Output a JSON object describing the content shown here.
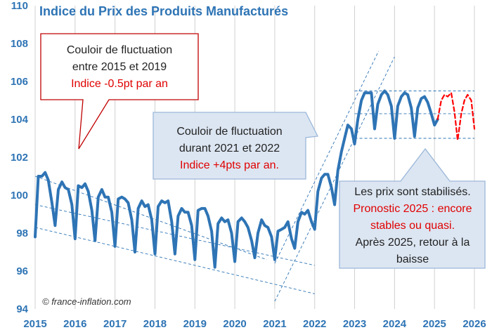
{
  "chart_data": {
    "type": "line",
    "title": "Indice du Prix des Produits Manufacturés",
    "xlabel": "",
    "ylabel": "",
    "xlim": [
      2015,
      2026
    ],
    "ylim": [
      94,
      110
    ],
    "x_ticks": [
      "2015",
      "2016",
      "2017",
      "2018",
      "2019",
      "2020",
      "2021",
      "2022",
      "2023",
      "2024",
      "2025",
      "2026"
    ],
    "y_ticks": [
      "94",
      "96",
      "98",
      "100",
      "102",
      "104",
      "106",
      "108",
      "110"
    ],
    "grid": "vertical lines at each year",
    "series": [
      {
        "style": "solid",
        "color": "#2e74b5",
        "points": [
          [
            2015.0,
            97.8
          ],
          [
            2015.08,
            101.0
          ],
          [
            2015.17,
            101.0
          ],
          [
            2015.25,
            101.2
          ],
          [
            2015.33,
            100.8
          ],
          [
            2015.42,
            99.6
          ],
          [
            2015.5,
            98.4
          ],
          [
            2015.58,
            100.3
          ],
          [
            2015.67,
            100.7
          ],
          [
            2015.75,
            100.4
          ],
          [
            2015.83,
            100.3
          ],
          [
            2015.92,
            99.5
          ],
          [
            2016.0,
            97.7
          ],
          [
            2016.08,
            100.5
          ],
          [
            2016.17,
            100.4
          ],
          [
            2016.25,
            100.6
          ],
          [
            2016.33,
            100.2
          ],
          [
            2016.42,
            99.2
          ],
          [
            2016.5,
            97.6
          ],
          [
            2016.58,
            99.9
          ],
          [
            2016.67,
            100.3
          ],
          [
            2016.75,
            99.9
          ],
          [
            2016.83,
            99.9
          ],
          [
            2016.92,
            99.1
          ],
          [
            2017.0,
            97.3
          ],
          [
            2017.08,
            99.8
          ],
          [
            2017.17,
            99.9
          ],
          [
            2017.25,
            99.8
          ],
          [
            2017.33,
            99.6
          ],
          [
            2017.42,
            98.7
          ],
          [
            2017.5,
            97.0
          ],
          [
            2017.58,
            99.3
          ],
          [
            2017.67,
            99.7
          ],
          [
            2017.75,
            99.4
          ],
          [
            2017.83,
            99.5
          ],
          [
            2017.92,
            98.7
          ],
          [
            2018.0,
            96.9
          ],
          [
            2018.08,
            99.4
          ],
          [
            2018.17,
            99.7
          ],
          [
            2018.25,
            99.6
          ],
          [
            2018.33,
            99.7
          ],
          [
            2018.42,
            98.6
          ],
          [
            2018.5,
            96.9
          ],
          [
            2018.58,
            98.9
          ],
          [
            2018.67,
            99.3
          ],
          [
            2018.75,
            99.1
          ],
          [
            2018.83,
            99.1
          ],
          [
            2018.92,
            98.4
          ],
          [
            2019.0,
            96.6
          ],
          [
            2019.08,
            99.2
          ],
          [
            2019.17,
            99.3
          ],
          [
            2019.25,
            99.3
          ],
          [
            2019.33,
            98.9
          ],
          [
            2019.42,
            98.1
          ],
          [
            2019.5,
            96.2
          ],
          [
            2019.58,
            98.5
          ],
          [
            2019.67,
            98.8
          ],
          [
            2019.75,
            98.6
          ],
          [
            2019.83,
            98.7
          ],
          [
            2019.92,
            98.0
          ],
          [
            2020.0,
            96.5
          ],
          [
            2020.08,
            98.6
          ],
          [
            2020.17,
            98.8
          ],
          [
            2020.25,
            98.6
          ],
          [
            2020.33,
            98.3
          ],
          [
            2020.42,
            97.6
          ],
          [
            2020.5,
            96.7
          ],
          [
            2020.58,
            98.0
          ],
          [
            2020.67,
            98.7
          ],
          [
            2020.75,
            98.4
          ],
          [
            2020.83,
            98.3
          ],
          [
            2020.92,
            97.8
          ],
          [
            2021.0,
            96.6
          ],
          [
            2021.08,
            98.1
          ],
          [
            2021.17,
            98.2
          ],
          [
            2021.25,
            98.3
          ],
          [
            2021.33,
            98.6
          ],
          [
            2021.42,
            97.7
          ],
          [
            2021.5,
            97.2
          ],
          [
            2021.58,
            98.6
          ],
          [
            2021.67,
            99.1
          ],
          [
            2021.75,
            99.0
          ],
          [
            2021.83,
            99.2
          ],
          [
            2021.92,
            98.6
          ],
          [
            2022.0,
            98.2
          ],
          [
            2022.08,
            100.2
          ],
          [
            2022.17,
            100.9
          ],
          [
            2022.25,
            101.1
          ],
          [
            2022.33,
            101.1
          ],
          [
            2022.42,
            100.4
          ],
          [
            2022.5,
            99.5
          ],
          [
            2022.58,
            101.3
          ],
          [
            2022.67,
            102.3
          ],
          [
            2022.75,
            103.0
          ],
          [
            2022.83,
            103.7
          ],
          [
            2022.92,
            103.5
          ],
          [
            2023.0,
            102.7
          ],
          [
            2023.08,
            104.0
          ],
          [
            2023.17,
            105.0
          ],
          [
            2023.25,
            105.4
          ],
          [
            2023.33,
            105.4
          ],
          [
            2023.42,
            105.4
          ],
          [
            2023.5,
            103.5
          ],
          [
            2023.58,
            104.8
          ],
          [
            2023.67,
            105.3
          ],
          [
            2023.75,
            105.5
          ],
          [
            2023.83,
            105.3
          ],
          [
            2023.92,
            104.7
          ],
          [
            2024.0,
            103.0
          ],
          [
            2024.08,
            104.7
          ],
          [
            2024.17,
            105.2
          ],
          [
            2024.25,
            105.4
          ],
          [
            2024.33,
            105.3
          ],
          [
            2024.42,
            104.6
          ],
          [
            2024.5,
            103.1
          ],
          [
            2024.58,
            104.6
          ],
          [
            2024.67,
            105.1
          ],
          [
            2024.75,
            105.2
          ],
          [
            2024.83,
            104.9
          ],
          [
            2024.92,
            104.3
          ],
          [
            2025.0,
            103.7
          ],
          [
            2025.08,
            104.0
          ]
        ]
      },
      {
        "style": "dashed",
        "color": "#ff0000",
        "points": [
          [
            2025.08,
            104.0
          ],
          [
            2025.17,
            105.0
          ],
          [
            2025.25,
            105.3
          ],
          [
            2025.33,
            105.2
          ],
          [
            2025.42,
            105.4
          ],
          [
            2025.5,
            104.4
          ],
          [
            2025.58,
            102.9
          ],
          [
            2025.67,
            104.3
          ],
          [
            2025.75,
            105.0
          ],
          [
            2025.83,
            105.3
          ],
          [
            2025.92,
            105.0
          ],
          [
            2026.0,
            103.5
          ]
        ]
      }
    ],
    "channel_lines": [
      {
        "x1": 2015.0,
        "y1": 101.0,
        "x2": 2020.8,
        "y2": 96.6
      },
      {
        "x1": 2015.0,
        "y1": 99.5,
        "x2": 2022.0,
        "y2": 96.3
      },
      {
        "x1": 2015.0,
        "y1": 98.3,
        "x2": 2022.0,
        "y2": 94.8
      },
      {
        "x1": 2021.0,
        "y1": 94.4,
        "x2": 2024.0,
        "y2": 107.3
      },
      {
        "x1": 2021.0,
        "y1": 96.4,
        "x2": 2023.6,
        "y2": 107.6
      },
      {
        "x1": 2023.0,
        "y1": 105.5,
        "x2": 2026.0,
        "y2": 105.5
      },
      {
        "x1": 2023.0,
        "y1": 104.3,
        "x2": 2026.0,
        "y2": 104.3
      },
      {
        "x1": 2023.0,
        "y1": 103.0,
        "x2": 2026.0,
        "y2": 103.0
      }
    ]
  },
  "callouts": {
    "box1": {
      "line1": "Couloir de fluctuation",
      "line2": "entre 2015 et 2019",
      "line3": "Indice -0.5pt par an"
    },
    "box2": {
      "line1": "Couloir de fluctuation",
      "line2": "durant 2021 et 2022",
      "line3": "Indice +4pts par an."
    },
    "box3": {
      "line1": "Les prix sont stabilisés.",
      "line2": "Pronostic 2025 : encore stables ou quasi.",
      "line3": "Après 2025, retour à la baisse"
    }
  },
  "credit": "© france-inflation.com",
  "colors": {
    "line": "#2e74b5",
    "forecast": "#ff0000",
    "callout_red": "#e00000",
    "box_fill": "#dce6f2",
    "box_border": "#9bb7d9"
  }
}
